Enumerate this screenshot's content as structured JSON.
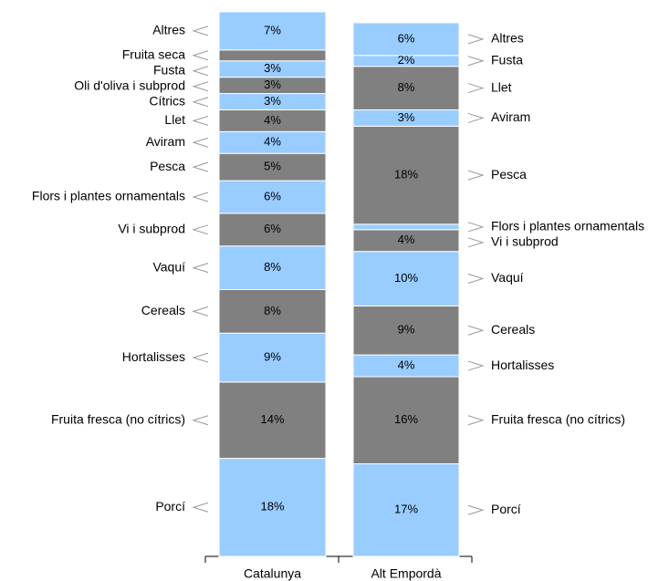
{
  "chart_data": {
    "type": "stacked_column",
    "categories": [
      "Catalunya",
      "Alt Empordà"
    ],
    "ylim": [
      0,
      100
    ],
    "stacks": [
      {
        "labels": [
          "Porcí",
          "Fruita fresca (no cítrics)",
          "Hortalisses",
          "Cereals",
          "Vaquí",
          "Vi i subprod",
          "Flors i plantes ornamentals",
          "Pesca",
          "Aviram",
          "Llet",
          "Cítrics",
          "Oli d'oliva i subprod",
          "Fusta",
          "Fruita seca",
          "Altres"
        ],
        "values": [
          18,
          14,
          9,
          8,
          8,
          6,
          6,
          5,
          4,
          4,
          3,
          3,
          3,
          2,
          7
        ],
        "value_labels": [
          "18%",
          "14%",
          "9%",
          "8%",
          "8%",
          "6%",
          "6%",
          "5%",
          "4%",
          "4%",
          "3%",
          "3%",
          "3%",
          null,
          "7%"
        ],
        "colors": [
          "#99ccff",
          "#808080",
          "#99ccff",
          "#808080",
          "#99ccff",
          "#808080",
          "#99ccff",
          "#808080",
          "#99ccff",
          "#808080",
          "#99ccff",
          "#808080",
          "#99ccff",
          "#808080",
          "#99ccff"
        ]
      },
      {
        "labels": [
          "Porcí",
          "Fruita fresca (no cítrics)",
          "Hortalisses",
          "Cereals",
          "Vaquí",
          "Vi i subprod",
          "Flors i plantes ornamentals",
          "Pesca",
          "Aviram",
          "Llet",
          "Fusta",
          "Altres"
        ],
        "values": [
          17,
          16,
          4,
          9,
          10,
          4,
          1,
          18,
          3,
          8,
          2,
          6
        ],
        "value_labels": [
          "17%",
          "16%",
          "4%",
          "9%",
          "10%",
          "4%",
          null,
          "18%",
          "3%",
          "8%",
          "2%",
          "6%"
        ],
        "colors": [
          "#99ccff",
          "#808080",
          "#99ccff",
          "#808080",
          "#99ccff",
          "#808080",
          "#99ccff",
          "#808080",
          "#99ccff",
          "#808080",
          "#99ccff",
          "#99ccff"
        ]
      }
    ]
  }
}
